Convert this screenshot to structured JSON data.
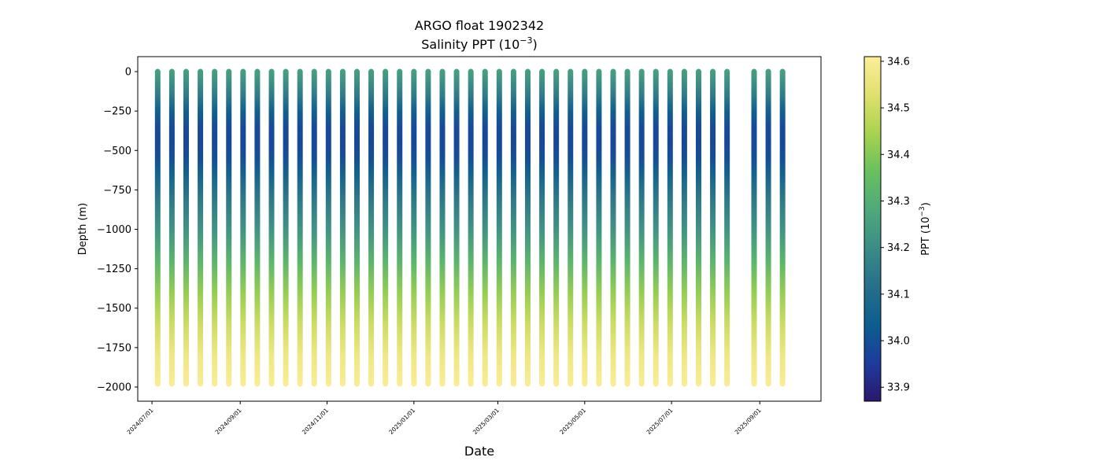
{
  "chart_data": {
    "type": "scatter",
    "title_line1": "ARGO float 1902342",
    "title_line2_prefix": "Salinity PPT (10",
    "title_line2_exp": "−3",
    "title_line2_suffix": ")",
    "xlabel": "Date",
    "ylabel": "Depth (m)",
    "colorbar_label_prefix": "PPT (10",
    "colorbar_label_exp": "−3",
    "colorbar_label_suffix": ")",
    "colormap": "haline",
    "colormap_stops": [
      "#2a186c",
      "#1e3b9d",
      "#0c5e8f",
      "#276f8a",
      "#3b8c87",
      "#4fa97a",
      "#69c05e",
      "#a8d34f",
      "#e0e06f",
      "#fdee99"
    ],
    "ylim": [
      -2090,
      95
    ],
    "yticks": [
      0,
      -250,
      -500,
      -750,
      -1000,
      -1250,
      -1500,
      -1750,
      -2000
    ],
    "ytick_labels": [
      "0",
      "−250",
      "−500",
      "−750",
      "−1000",
      "−1250",
      "−1500",
      "−1750",
      "−2000"
    ],
    "xlim": [
      "2024-06-21",
      "2025-10-14"
    ],
    "xticks": [
      "2024-07-01",
      "2024-09-01",
      "2024-11-01",
      "2025-01-01",
      "2025-03-01",
      "2025-05-01",
      "2025-07-01",
      "2025-09-01"
    ],
    "xtick_labels": [
      "2024/07/01",
      "2024/09/01",
      "2024/11/01",
      "2025/01/01",
      "2025/03/01",
      "2025/05/01",
      "2025/07/01",
      "2025/09/01"
    ],
    "clim": [
      33.87,
      34.61
    ],
    "cticks": [
      33.9,
      34.0,
      34.1,
      34.2,
      34.3,
      34.4,
      34.5,
      34.6
    ],
    "ctick_labels": [
      "33.9",
      "34.0",
      "34.1",
      "34.2",
      "34.3",
      "34.4",
      "34.5",
      "34.6"
    ],
    "profile_dates": [
      "2024-07-05",
      "2024-07-15",
      "2024-07-25",
      "2024-08-04",
      "2024-08-14",
      "2024-08-24",
      "2024-09-03",
      "2024-09-13",
      "2024-09-23",
      "2024-10-03",
      "2024-10-13",
      "2024-10-23",
      "2024-11-02",
      "2024-11-12",
      "2024-11-22",
      "2024-12-02",
      "2024-12-12",
      "2024-12-22",
      "2025-01-01",
      "2025-01-11",
      "2025-01-21",
      "2025-01-31",
      "2025-02-10",
      "2025-02-20",
      "2025-03-02",
      "2025-03-12",
      "2025-03-22",
      "2025-04-01",
      "2025-04-11",
      "2025-04-21",
      "2025-05-01",
      "2025-05-11",
      "2025-05-21",
      "2025-05-31",
      "2025-06-10",
      "2025-06-20",
      "2025-06-30",
      "2025-07-10",
      "2025-07-20",
      "2025-07-30",
      "2025-08-09",
      "2025-08-28",
      "2025-09-07",
      "2025-09-17"
    ],
    "profile_depth_range": [
      0,
      -1980
    ],
    "salinity_profile": {
      "depth": [
        0,
        -50,
        -150,
        -250,
        -350,
        -450,
        -550,
        -650,
        -800,
        -1000,
        -1200,
        -1400,
        -1600,
        -1800,
        -1980
      ],
      "value": [
        34.25,
        34.22,
        34.15,
        34.05,
        33.99,
        33.98,
        34.0,
        34.06,
        34.14,
        34.22,
        34.32,
        34.42,
        34.5,
        34.57,
        34.6
      ]
    }
  }
}
